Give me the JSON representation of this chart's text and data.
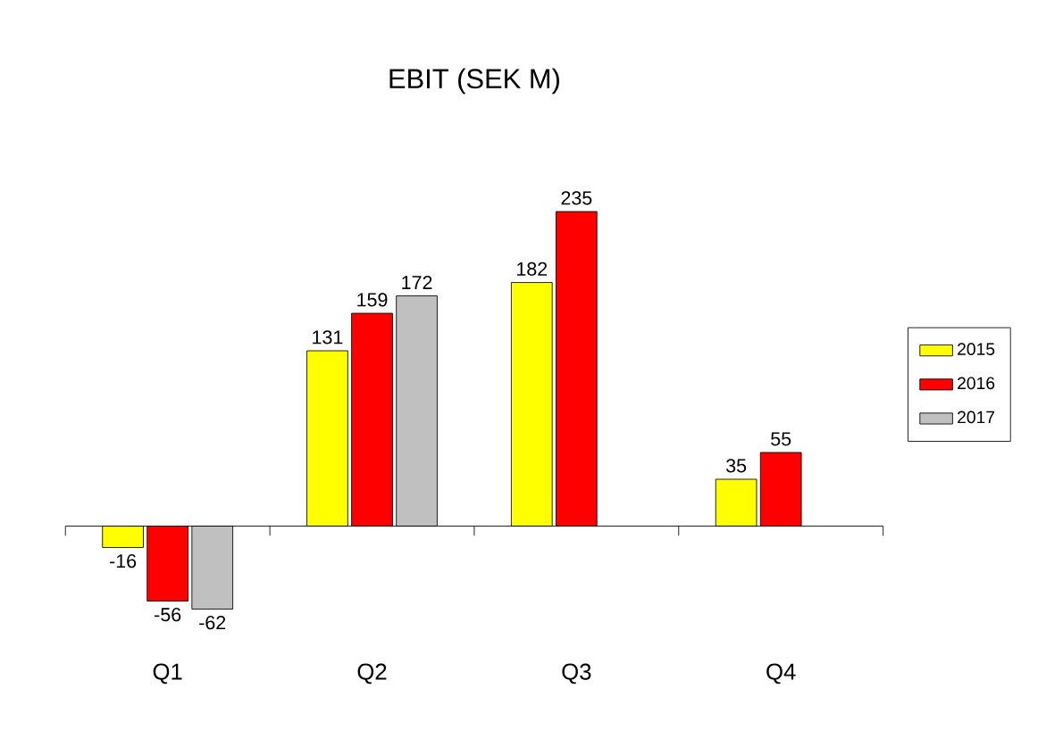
{
  "chart_data": {
    "type": "bar",
    "title": "EBIT (SEK M)",
    "categories": [
      "Q1",
      "Q2",
      "Q3",
      "Q4"
    ],
    "series": [
      {
        "name": "2015",
        "color": "#ffff00",
        "values": [
          -16,
          131,
          182,
          35
        ]
      },
      {
        "name": "2016",
        "color": "#ff0000",
        "values": [
          -56,
          159,
          235,
          55
        ]
      },
      {
        "name": "2017",
        "color": "#c0c0c0",
        "values": [
          -62,
          172,
          null,
          null
        ]
      }
    ],
    "data_labels": true,
    "legend": "right"
  }
}
